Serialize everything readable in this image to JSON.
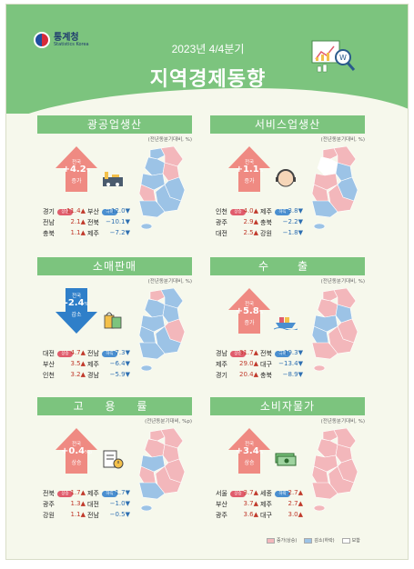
{
  "header": {
    "logo_text": "통계청",
    "logo_sub": "Statistics Korea",
    "subtitle": "2023년 4/4분기",
    "title": "지역경제동향"
  },
  "unit_label": "(전년동분기대비, %)",
  "unit_label_p": "(전년동분기대비, %p)",
  "colors": {
    "header_green": "#7cc47e",
    "increase": "#f3b7bb",
    "decrease": "#9cc3e6",
    "flat": "#ffffff",
    "arrow_up": "#ef8a82",
    "arrow_down": "#2f7fc9"
  },
  "panels": [
    {
      "title": "광공업생산",
      "direction": "up",
      "arrow": {
        "label": "전국",
        "value": "+4.2",
        "unit": "%",
        "dir": "증가"
      },
      "icon": "factory-icon",
      "badges": {
        "up": "상승",
        "down": "하락"
      },
      "rows": [
        {
          "up_region": "경기",
          "up_value": "11.4▲",
          "down_region": "부산",
          "down_value": "−12.0▼"
        },
        {
          "up_region": "전남",
          "up_value": "2.1▲",
          "down_region": "전북",
          "down_value": "−10.1▼"
        },
        {
          "up_region": "충북",
          "up_value": "1.1▲",
          "down_region": "제주",
          "down_value": "−7.2▼"
        }
      ]
    },
    {
      "title": "서비스업생산",
      "direction": "up",
      "arrow": {
        "label": "전국",
        "value": "+1.1",
        "unit": "%",
        "dir": "증가"
      },
      "icon": "headset-agent-icon",
      "badges": {
        "up": "상승",
        "down": "하락"
      },
      "rows": [
        {
          "up_region": "인천",
          "up_value": "4.0▲",
          "down_region": "제주",
          "down_value": "−3.8▼"
        },
        {
          "up_region": "광주",
          "up_value": "2.9▲",
          "down_region": "충북",
          "down_value": "−2.2▼"
        },
        {
          "up_region": "대전",
          "up_value": "2.5▲",
          "down_region": "강원",
          "down_value": "−1.8▼"
        }
      ]
    },
    {
      "title": "소매판매",
      "direction": "down",
      "arrow": {
        "label": "전국",
        "value": "-2.4",
        "unit": "%",
        "dir": "감소"
      },
      "icon": "shopping-bags-icon",
      "badges": {
        "up": "상승",
        "down": "하락"
      },
      "rows": [
        {
          "up_region": "대전",
          "up_value": "4.7▲",
          "down_region": "전남",
          "down_value": "−7.3▼"
        },
        {
          "up_region": "부산",
          "up_value": "3.5▲",
          "down_region": "제주",
          "down_value": "−6.4▼"
        },
        {
          "up_region": "인천",
          "up_value": "3.2▲",
          "down_region": "경남",
          "down_value": "−5.9▼"
        }
      ]
    },
    {
      "title": "수　출",
      "direction": "up",
      "arrow": {
        "label": "전국",
        "value": "+5.8",
        "unit": "%",
        "dir": "증가"
      },
      "icon": "cargo-ship-icon",
      "badges": {
        "up": "상승",
        "down": "하락"
      },
      "rows": [
        {
          "up_region": "경남",
          "up_value": "31.7▲",
          "down_region": "전북",
          "down_value": "−19.3▼"
        },
        {
          "up_region": "제주",
          "up_value": "29.0▲",
          "down_region": "대구",
          "down_value": "−13.4▼"
        },
        {
          "up_region": "경기",
          "up_value": "20.4▲",
          "down_region": "충북",
          "down_value": "−8.9▼"
        }
      ]
    },
    {
      "title": "고 용 률",
      "direction": "up",
      "arrow": {
        "label": "전국",
        "value": "+0.4",
        "unit": "%p",
        "dir": "상승"
      },
      "icon": "clipboard-clock-icon",
      "badges": {
        "up": "상승",
        "down": "하락"
      },
      "rows": [
        {
          "up_region": "전북",
          "up_value": "1.7▲",
          "down_region": "제주",
          "down_value": "−1.7▼"
        },
        {
          "up_region": "광주",
          "up_value": "1.3▲",
          "down_region": "대전",
          "down_value": "−1.0▼"
        },
        {
          "up_region": "강원",
          "up_value": "1.1▲",
          "down_region": "전남",
          "down_value": "−0.5▼"
        }
      ]
    },
    {
      "title": "소비자물가",
      "direction": "up",
      "arrow": {
        "label": "전국",
        "value": "+3.4",
        "unit": "%",
        "dir": "상승"
      },
      "icon": "money-stack-icon",
      "badges": {
        "up": "상승",
        "down": "하락"
      },
      "rows": [
        {
          "up_region": "서울",
          "up_value": "3.7▲",
          "down_region": "세종",
          "down_value": "2.7▲"
        },
        {
          "up_region": "부산",
          "up_value": "3.7▲",
          "down_region": "제주",
          "down_value": "2.7▲"
        },
        {
          "up_region": "광주",
          "up_value": "3.6▲",
          "down_region": "대구",
          "down_value": "3.0▲"
        }
      ]
    }
  ],
  "legend": {
    "increase": "증가(상승)",
    "decrease": "감소(하락)",
    "flat": "보합"
  }
}
